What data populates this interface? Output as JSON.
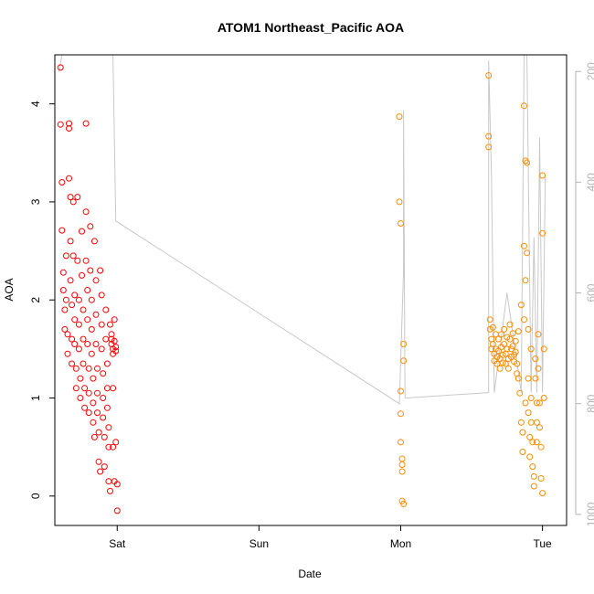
{
  "chart_data": {
    "type": "scatter",
    "title": "ATOM1 Northeast_Pacific AOA",
    "xlabel": "Date",
    "ylabel": "AOA",
    "x_ticks": [
      {
        "label": "Sat",
        "value": 0
      },
      {
        "label": "Sun",
        "value": 1
      },
      {
        "label": "Mon",
        "value": 2
      },
      {
        "label": "Tue",
        "value": 3
      }
    ],
    "xlim": [
      -0.44,
      3.17
    ],
    "ylim": [
      -0.3,
      4.5
    ],
    "y_ticks": [
      0,
      1,
      2,
      3,
      4
    ],
    "y2_ticks": [
      200,
      400,
      600,
      800,
      1000
    ],
    "y2lim": [
      1020,
      170
    ],
    "y2_reversed": true,
    "colors": {
      "red": "#ff0000",
      "orange": "#ff8c00",
      "line": "#c8c8c8",
      "right_axis": "#b3b3b3"
    },
    "series": [
      {
        "color": "#ff0000",
        "points": [
          [
            -0.4,
            4.37
          ],
          [
            -0.4,
            3.79
          ],
          [
            -0.39,
            3.2
          ],
          [
            -0.39,
            2.71
          ],
          [
            -0.38,
            2.28
          ],
          [
            -0.38,
            2.1
          ],
          [
            -0.37,
            1.9
          ],
          [
            -0.37,
            1.7
          ],
          [
            -0.36,
            2.45
          ],
          [
            -0.36,
            2.0
          ],
          [
            -0.35,
            1.65
          ],
          [
            -0.35,
            1.45
          ],
          [
            -0.34,
            3.8
          ],
          [
            -0.34,
            3.75
          ],
          [
            -0.34,
            3.24
          ],
          [
            -0.33,
            3.05
          ],
          [
            -0.33,
            2.6
          ],
          [
            -0.33,
            2.2
          ],
          [
            -0.32,
            1.95
          ],
          [
            -0.32,
            1.6
          ],
          [
            -0.32,
            1.35
          ],
          [
            -0.31,
            3.0
          ],
          [
            -0.31,
            2.45
          ],
          [
            -0.3,
            2.05
          ],
          [
            -0.3,
            1.8
          ],
          [
            -0.3,
            1.55
          ],
          [
            -0.29,
            1.3
          ],
          [
            -0.29,
            1.1
          ],
          [
            -0.28,
            3.05
          ],
          [
            -0.28,
            2.4
          ],
          [
            -0.27,
            2.0
          ],
          [
            -0.27,
            1.75
          ],
          [
            -0.27,
            1.5
          ],
          [
            -0.26,
            1.2
          ],
          [
            -0.26,
            1.0
          ],
          [
            -0.25,
            2.7
          ],
          [
            -0.25,
            2.25
          ],
          [
            -0.24,
            1.9
          ],
          [
            -0.24,
            1.6
          ],
          [
            -0.24,
            1.35
          ],
          [
            -0.23,
            1.1
          ],
          [
            -0.23,
            0.9
          ],
          [
            -0.22,
            3.8
          ],
          [
            -0.22,
            2.9
          ],
          [
            -0.22,
            2.4
          ],
          [
            -0.21,
            2.1
          ],
          [
            -0.21,
            1.8
          ],
          [
            -0.21,
            1.55
          ],
          [
            -0.2,
            1.3
          ],
          [
            -0.2,
            1.05
          ],
          [
            -0.2,
            0.85
          ],
          [
            -0.19,
            2.75
          ],
          [
            -0.19,
            2.3
          ],
          [
            -0.18,
            2.0
          ],
          [
            -0.18,
            1.7
          ],
          [
            -0.18,
            1.45
          ],
          [
            -0.17,
            1.2
          ],
          [
            -0.17,
            0.95
          ],
          [
            -0.17,
            0.75
          ],
          [
            -0.16,
            0.6
          ],
          [
            -0.16,
            2.6
          ],
          [
            -0.15,
            2.2
          ],
          [
            -0.15,
            1.85
          ],
          [
            -0.15,
            1.55
          ],
          [
            -0.14,
            1.3
          ],
          [
            -0.14,
            1.05
          ],
          [
            -0.14,
            0.85
          ],
          [
            -0.13,
            0.65
          ],
          [
            -0.13,
            0.35
          ],
          [
            -0.12,
            0.25
          ],
          [
            -0.12,
            2.3
          ],
          [
            -0.11,
            2.05
          ],
          [
            -0.11,
            1.75
          ],
          [
            -0.11,
            1.5
          ],
          [
            -0.1,
            1.25
          ],
          [
            -0.1,
            1.0
          ],
          [
            -0.1,
            0.8
          ],
          [
            -0.09,
            0.6
          ],
          [
            -0.09,
            0.3
          ],
          [
            -0.08,
            1.9
          ],
          [
            -0.08,
            1.6
          ],
          [
            -0.07,
            1.35
          ],
          [
            -0.07,
            1.1
          ],
          [
            -0.07,
            0.9
          ],
          [
            -0.06,
            0.7
          ],
          [
            -0.06,
            0.5
          ],
          [
            -0.06,
            0.15
          ],
          [
            -0.05,
            0.05
          ],
          [
            -0.05,
            1.75
          ],
          [
            -0.04,
            1.65
          ],
          [
            -0.04,
            1.6
          ],
          [
            -0.04,
            1.55
          ],
          [
            -0.03,
            1.5
          ],
          [
            -0.03,
            1.45
          ],
          [
            -0.03,
            1.1
          ],
          [
            -0.03,
            0.5
          ],
          [
            -0.02,
            0.15
          ],
          [
            -0.02,
            1.8
          ],
          [
            -0.02,
            1.58
          ],
          [
            -0.01,
            1.52
          ],
          [
            -0.01,
            1.48
          ],
          [
            -0.01,
            0.55
          ],
          [
            0.0,
            0.12
          ],
          [
            0.0,
            -0.15
          ]
        ]
      },
      {
        "color": "#ff8c00",
        "points": [
          [
            1.99,
            3.87
          ],
          [
            1.99,
            3.0
          ],
          [
            2.0,
            2.78
          ],
          [
            2.0,
            1.07
          ],
          [
            2.0,
            0.84
          ],
          [
            2.0,
            0.55
          ],
          [
            2.01,
            0.38
          ],
          [
            2.01,
            0.32
          ],
          [
            2.01,
            0.25
          ],
          [
            2.01,
            -0.05
          ],
          [
            2.02,
            -0.08
          ],
          [
            2.02,
            1.55
          ],
          [
            2.02,
            1.38
          ],
          [
            2.62,
            4.29
          ],
          [
            2.62,
            3.67
          ],
          [
            2.62,
            3.56
          ],
          [
            2.63,
            1.8
          ],
          [
            2.63,
            1.7
          ],
          [
            2.64,
            1.6
          ],
          [
            2.64,
            1.5
          ],
          [
            2.65,
            1.72
          ],
          [
            2.65,
            1.55
          ],
          [
            2.66,
            1.45
          ],
          [
            2.66,
            1.38
          ],
          [
            2.67,
            1.65
          ],
          [
            2.67,
            1.5
          ],
          [
            2.68,
            1.42
          ],
          [
            2.68,
            1.35
          ],
          [
            2.69,
            1.6
          ],
          [
            2.69,
            1.48
          ],
          [
            2.7,
            1.4
          ],
          [
            2.7,
            1.3
          ],
          [
            2.71,
            1.65
          ],
          [
            2.71,
            1.52
          ],
          [
            2.72,
            1.44
          ],
          [
            2.72,
            1.36
          ],
          [
            2.73,
            1.7
          ],
          [
            2.73,
            1.55
          ],
          [
            2.74,
            1.45
          ],
          [
            2.74,
            1.35
          ],
          [
            2.75,
            1.62
          ],
          [
            2.75,
            1.5
          ],
          [
            2.76,
            1.4
          ],
          [
            2.76,
            1.3
          ],
          [
            2.77,
            1.75
          ],
          [
            2.77,
            1.6
          ],
          [
            2.78,
            1.5
          ],
          [
            2.78,
            1.42
          ],
          [
            2.79,
            1.66
          ],
          [
            2.79,
            1.53
          ],
          [
            2.8,
            1.44
          ],
          [
            2.8,
            1.37
          ],
          [
            2.81,
            1.58
          ],
          [
            2.81,
            1.47
          ],
          [
            2.82,
            1.35
          ],
          [
            2.82,
            1.25
          ],
          [
            2.83,
            1.68
          ],
          [
            2.83,
            1.2
          ],
          [
            2.84,
            1.05
          ],
          [
            2.85,
            1.95
          ],
          [
            2.85,
            0.75
          ],
          [
            2.86,
            0.65
          ],
          [
            2.86,
            0.45
          ],
          [
            2.87,
            3.98
          ],
          [
            2.87,
            2.55
          ],
          [
            2.87,
            1.8
          ],
          [
            2.88,
            3.42
          ],
          [
            2.88,
            2.2
          ],
          [
            2.88,
            0.95
          ],
          [
            2.89,
            3.4
          ],
          [
            2.89,
            2.48
          ],
          [
            2.9,
            1.7
          ],
          [
            2.9,
            1.2
          ],
          [
            2.9,
            0.85
          ],
          [
            2.91,
            0.6
          ],
          [
            2.91,
            0.4
          ],
          [
            2.92,
            1.5
          ],
          [
            2.92,
            1.0
          ],
          [
            2.92,
            0.75
          ],
          [
            2.93,
            0.55
          ],
          [
            2.93,
            0.3
          ],
          [
            2.94,
            0.2
          ],
          [
            2.94,
            0.1
          ],
          [
            2.95,
            1.4
          ],
          [
            2.95,
            1.2
          ],
          [
            2.96,
            0.95
          ],
          [
            2.96,
            0.75
          ],
          [
            2.96,
            0.55
          ],
          [
            2.97,
            1.65
          ],
          [
            2.97,
            1.3
          ],
          [
            2.98,
            0.95
          ],
          [
            2.98,
            0.7
          ],
          [
            2.99,
            0.5
          ],
          [
            2.99,
            0.18
          ],
          [
            3.0,
            0.03
          ],
          [
            3.0,
            2.68
          ],
          [
            3.0,
            3.27
          ],
          [
            3.01,
            1.5
          ],
          [
            3.01,
            1.0
          ]
        ]
      }
    ],
    "line_series": {
      "color": "#c8c8c8",
      "axis": "right",
      "points": [
        [
          -0.41,
          200
        ],
        [
          -0.39,
          170
        ],
        [
          -0.37,
          170
        ],
        [
          -0.35,
          170
        ],
        [
          -0.33,
          170
        ],
        [
          -0.31,
          170
        ],
        [
          -0.29,
          170
        ],
        [
          -0.27,
          170
        ],
        [
          -0.25,
          170
        ],
        [
          -0.23,
          170
        ],
        [
          -0.21,
          170
        ],
        [
          -0.19,
          170
        ],
        [
          -0.17,
          170
        ],
        [
          -0.15,
          170
        ],
        [
          -0.13,
          170
        ],
        [
          -0.11,
          170
        ],
        [
          -0.09,
          170
        ],
        [
          -0.07,
          170
        ],
        [
          -0.05,
          170
        ],
        [
          -0.03,
          170
        ],
        [
          -0.01,
          470
        ],
        [
          1.99,
          800
        ],
        [
          2.02,
          560
        ],
        [
          2.02,
          270
        ],
        [
          2.03,
          790
        ],
        [
          2.62,
          780
        ],
        [
          2.62,
          180
        ],
        [
          2.64,
          390
        ],
        [
          2.66,
          780
        ],
        [
          2.75,
          600
        ],
        [
          2.85,
          780
        ],
        [
          2.87,
          170
        ],
        [
          2.89,
          170
        ],
        [
          2.91,
          600
        ],
        [
          2.92,
          780
        ],
        [
          2.94,
          500
        ],
        [
          2.96,
          780
        ],
        [
          2.98,
          320
        ],
        [
          3.0,
          780
        ],
        [
          3.02,
          390
        ]
      ]
    }
  }
}
